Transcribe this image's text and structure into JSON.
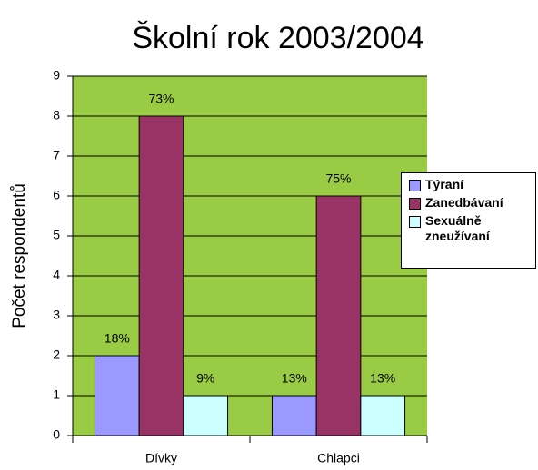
{
  "chart_data": {
    "type": "bar",
    "title": "Školní rok 2003/2004",
    "y_label": "Počet respondentů",
    "categories": [
      "Dívky",
      "Chlapci"
    ],
    "series": [
      {
        "name": "Týraní",
        "color": "#9999ff",
        "values": [
          2,
          1
        ],
        "value_labels": [
          "18%",
          "13%"
        ]
      },
      {
        "name": "Zanedbávaní",
        "color": "#993366",
        "values": [
          8,
          6
        ],
        "value_labels": [
          "73%",
          "75%"
        ]
      },
      {
        "name": "Sexuálně zneužívaní",
        "color": "#ccffff",
        "values": [
          1,
          1
        ],
        "value_labels": [
          "9%",
          "13%"
        ]
      }
    ],
    "ylim": [
      0,
      9
    ],
    "yticks": [
      0,
      1,
      2,
      3,
      4,
      5,
      6,
      7,
      8,
      9
    ],
    "grid": true,
    "plot_background": "#99cc44",
    "legend": "right"
  }
}
